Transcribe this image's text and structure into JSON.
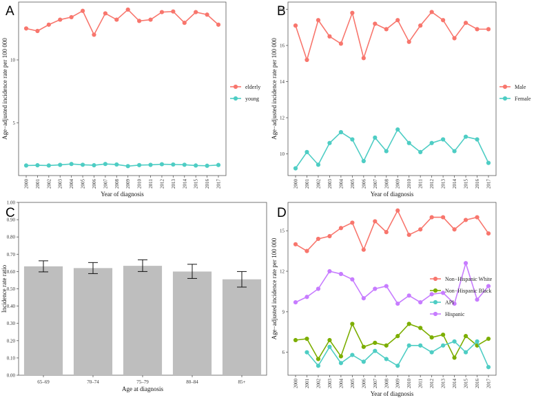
{
  "chart_data": [
    {
      "panel": "A",
      "type": "line",
      "x": [
        "2000",
        "2001",
        "2002",
        "2003",
        "2004",
        "2005",
        "2006",
        "2007",
        "2008",
        "2009",
        "2010",
        "2011",
        "2012",
        "2013",
        "2014",
        "2015",
        "2016",
        "2017"
      ],
      "series": [
        {
          "name": "elderly",
          "color": "#F8766D",
          "values": [
            12.5,
            12.3,
            12.8,
            13.2,
            13.4,
            13.9,
            12.0,
            13.7,
            13.2,
            14.0,
            13.1,
            13.2,
            13.8,
            13.85,
            12.95,
            13.8,
            13.6,
            12.8
          ]
        },
        {
          "name": "young",
          "color": "#4ECDC4",
          "values": [
            1.6,
            1.62,
            1.6,
            1.65,
            1.72,
            1.66,
            1.62,
            1.72,
            1.68,
            1.55,
            1.63,
            1.65,
            1.7,
            1.68,
            1.66,
            1.6,
            1.58,
            1.64
          ]
        }
      ],
      "yticks": [
        5,
        10
      ],
      "ylim": [
        0.8,
        14.6
      ],
      "xlabel": "Year of diagnosis",
      "ylabel": "Age−adjusted incidence rate per 100 000",
      "legend_position": "right"
    },
    {
      "panel": "B",
      "type": "line",
      "x": [
        "2000",
        "2001",
        "2002",
        "2003",
        "2004",
        "2005",
        "2006",
        "2007",
        "2008",
        "2009",
        "2010",
        "2011",
        "2012",
        "2013",
        "2014",
        "2015",
        "2016",
        "2017"
      ],
      "series": [
        {
          "name": "Male",
          "color": "#F8766D",
          "values": [
            17.1,
            15.2,
            17.4,
            16.5,
            16.1,
            17.8,
            15.3,
            17.2,
            16.9,
            17.4,
            16.2,
            17.1,
            17.85,
            17.4,
            16.4,
            17.25,
            16.9,
            16.9
          ]
        },
        {
          "name": "Female",
          "color": "#4ECDC4",
          "values": [
            9.2,
            10.1,
            9.4,
            10.6,
            11.2,
            10.8,
            9.6,
            10.9,
            10.15,
            11.35,
            10.6,
            10.1,
            10.6,
            10.8,
            10.15,
            10.95,
            10.8,
            9.5
          ]
        }
      ],
      "yticks": [
        10,
        12,
        14,
        16,
        18
      ],
      "ylim": [
        8.8,
        18.4
      ],
      "xlabel": "Year of diagnosis",
      "ylabel": "Age−adjusted incidence rate per 100 000",
      "legend_position": "right"
    },
    {
      "panel": "C",
      "type": "bar",
      "categories": [
        "65–69",
        "70–74",
        "75–79",
        "80–84",
        "85+"
      ],
      "values": [
        0.63,
        0.62,
        0.633,
        0.6,
        0.555
      ],
      "error_low": [
        0.598,
        0.588,
        0.6,
        0.56,
        0.51
      ],
      "error_high": [
        0.662,
        0.652,
        0.668,
        0.642,
        0.6
      ],
      "bar_color": "#BEBEBE",
      "yticks": [
        0.0,
        0.1,
        0.2,
        0.3,
        0.4,
        0.5,
        0.6,
        0.7,
        0.8,
        0.9,
        1.0
      ],
      "ytick_labels": [
        "0.00",
        "0.10",
        "0.20",
        "0.30",
        "0.40",
        "0.50",
        "0.60",
        "0.70",
        "0.80",
        "0.90",
        "1.00"
      ],
      "ylim": [
        0,
        1.0
      ],
      "xlabel": "Age at diagnosis",
      "ylabel": "Incidence rate ratio"
    },
    {
      "panel": "D",
      "type": "line",
      "x": [
        "2000",
        "2001",
        "2002",
        "2003",
        "2004",
        "2005",
        "2006",
        "2007",
        "2008",
        "2009",
        "2010",
        "2011",
        "2012",
        "2013",
        "2014",
        "2015",
        "2016",
        "2017"
      ],
      "series": [
        {
          "name": "Non−Hispanic White",
          "color": "#F8766D",
          "values": [
            14.0,
            13.5,
            14.4,
            14.6,
            15.2,
            15.6,
            13.6,
            15.7,
            14.9,
            16.5,
            14.7,
            15.1,
            16.0,
            16.0,
            15.1,
            15.8,
            16.0,
            14.8
          ]
        },
        {
          "name": "Non−Hispanic Black",
          "color": "#7CAE00",
          "values": [
            6.9,
            7.0,
            5.5,
            6.9,
            5.7,
            8.1,
            6.4,
            6.7,
            6.5,
            7.2,
            8.1,
            7.8,
            7.1,
            7.3,
            5.6,
            7.2,
            6.5,
            7.0
          ]
        },
        {
          "name": "API",
          "color": "#4ECDC4",
          "values": [
            null,
            6.0,
            5.0,
            6.4,
            5.2,
            5.8,
            5.3,
            6.1,
            5.5,
            5.0,
            6.5,
            6.5,
            6.0,
            6.5,
            6.8,
            6.0,
            6.8,
            4.9
          ]
        },
        {
          "name": "Hispanic",
          "color": "#C77CFF",
          "values": [
            9.7,
            10.1,
            10.7,
            12.0,
            11.8,
            11.4,
            10.0,
            10.7,
            10.9,
            9.6,
            10.2,
            9.7,
            10.3,
            10.4,
            9.6,
            12.6,
            9.9,
            10.9
          ]
        }
      ],
      "yticks": [
        6,
        9,
        12,
        15
      ],
      "ylim": [
        4.3,
        17.1
      ],
      "xlabel": "Year of diagnosis",
      "ylabel": "Age−adjusted incidence rate per 100 000",
      "legend_position": "right"
    }
  ]
}
